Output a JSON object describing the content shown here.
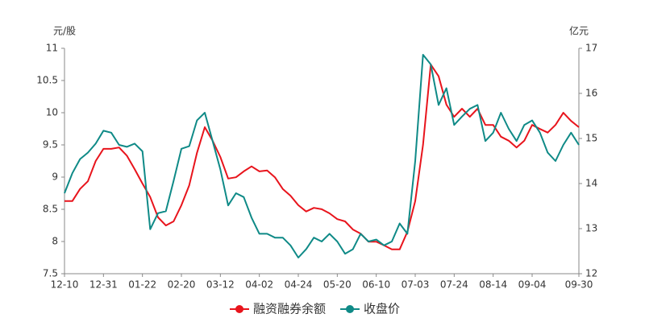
{
  "chart_data": {
    "type": "line",
    "y_label": "元/股",
    "y2_label": "亿元",
    "categories": [
      "12-10",
      null,
      null,
      null,
      null,
      "12-31",
      null,
      null,
      null,
      null,
      "01-22",
      null,
      null,
      null,
      null,
      "02-20",
      null,
      null,
      null,
      null,
      "03-12",
      null,
      null,
      null,
      null,
      "04-02",
      null,
      null,
      null,
      null,
      "04-24",
      null,
      null,
      null,
      null,
      "05-20",
      null,
      null,
      null,
      null,
      "06-10",
      null,
      null,
      null,
      null,
      "07-03",
      null,
      null,
      null,
      null,
      "07-24",
      null,
      null,
      null,
      null,
      "08-14",
      null,
      null,
      null,
      null,
      "09-04",
      null,
      null,
      null,
      null,
      null,
      "09-30"
    ],
    "series": [
      {
        "name": "融资融券余额",
        "color": "#e8141c",
        "axis": "y2",
        "values": [
          13.61,
          13.61,
          13.88,
          14.05,
          14.5,
          14.77,
          14.77,
          14.8,
          14.62,
          14.32,
          14.0,
          13.7,
          13.25,
          13.07,
          13.16,
          13.52,
          13.96,
          14.68,
          15.25,
          14.95,
          14.59,
          14.11,
          14.14,
          14.27,
          14.38,
          14.27,
          14.29,
          14.14,
          13.88,
          13.73,
          13.52,
          13.38,
          13.46,
          13.43,
          13.34,
          13.21,
          13.16,
          12.98,
          12.89,
          12.71,
          12.71,
          12.63,
          12.54,
          12.54,
          12.93,
          13.61,
          14.86,
          16.64,
          16.38,
          15.75,
          15.48,
          15.66,
          15.48,
          15.66,
          15.3,
          15.3,
          15.04,
          14.95,
          14.8,
          14.95,
          15.3,
          15.21,
          15.13,
          15.3,
          15.57,
          15.39,
          15.25
        ]
      },
      {
        "name": "收盘价",
        "color": "#0f8a87",
        "axis": "y",
        "values": [
          8.75,
          9.06,
          9.28,
          9.38,
          9.52,
          9.72,
          9.69,
          9.5,
          9.47,
          9.52,
          9.4,
          8.19,
          8.44,
          8.47,
          8.94,
          9.44,
          9.48,
          9.88,
          10.0,
          9.56,
          9.12,
          8.56,
          8.75,
          8.69,
          8.37,
          8.12,
          8.12,
          8.06,
          8.06,
          7.94,
          7.75,
          7.88,
          8.06,
          8.0,
          8.12,
          8.0,
          7.81,
          7.88,
          8.12,
          8.0,
          8.03,
          7.94,
          8.0,
          8.28,
          8.12,
          9.25,
          10.9,
          10.75,
          10.12,
          10.38,
          9.81,
          9.94,
          10.06,
          10.12,
          9.56,
          9.69,
          10.0,
          9.75,
          9.56,
          9.81,
          9.88,
          9.69,
          9.38,
          9.25,
          9.5,
          9.69,
          9.5
        ]
      }
    ],
    "ylim": [
      7.5,
      11
    ],
    "yticks": [
      7.5,
      8,
      8.5,
      9,
      9.5,
      10,
      10.5,
      11
    ],
    "y2lim": [
      12,
      17
    ],
    "y2ticks": [
      12,
      13,
      14,
      15,
      16,
      17
    ],
    "grid": false
  }
}
